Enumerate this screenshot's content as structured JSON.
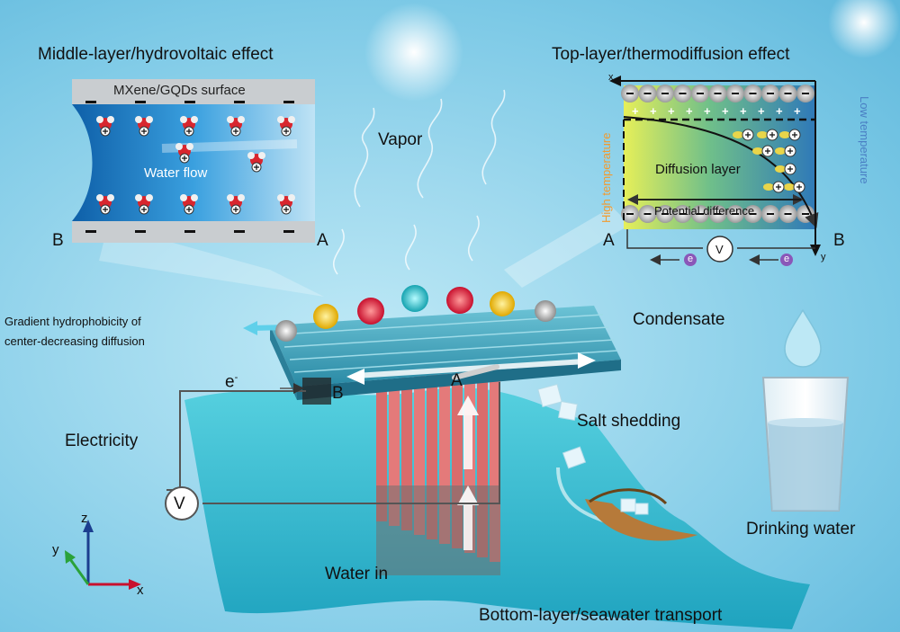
{
  "titles": {
    "middle_layer": "Middle-layer/hydrovoltaic effect",
    "top_layer": "Top-layer/thermodiffusion effect",
    "bottom_layer": "Bottom-layer/seawater transport"
  },
  "middle_panel": {
    "surface": "MXene/GQDs surface",
    "flow": "Water flow",
    "left_terminal": "B",
    "right_terminal": "A"
  },
  "top_panel": {
    "diffusion": "Diffusion layer",
    "potential": "Potential difference",
    "high_temp": "High temperature",
    "low_temp": "Low temperature",
    "left_terminal": "A",
    "right_terminal": "B",
    "voltmeter": "V",
    "electron": "e",
    "x_axis": "x",
    "y_axis": "y"
  },
  "labels": {
    "vapor": "Vapor",
    "condensate": "Condensate",
    "gradient_line1": "Gradient hydrophobicity of",
    "gradient_line2": "center-decreasing diffusion",
    "electron": "e",
    "electron_sup": "-",
    "electricity": "Electricity",
    "voltmeter": "V",
    "device_b": "B",
    "device_a": "A",
    "salt_shedding": "Salt shedding",
    "drinking_water": "Drinking water",
    "water_in": "Water in"
  },
  "axes": {
    "x": "x",
    "y": "y",
    "z": "z"
  },
  "colors": {
    "sky": "#9fd9ee",
    "sea": "#3fc1d6",
    "channel": "#1e7fc4",
    "fins": "#e47a7a",
    "membrane": "#46a7be",
    "high_temp": "#f29a2e",
    "low_temp": "#4a7fc4",
    "electron": "#8a57b8"
  },
  "balls": [
    "gray",
    "gold",
    "red",
    "teal",
    "red",
    "gold",
    "gray"
  ]
}
